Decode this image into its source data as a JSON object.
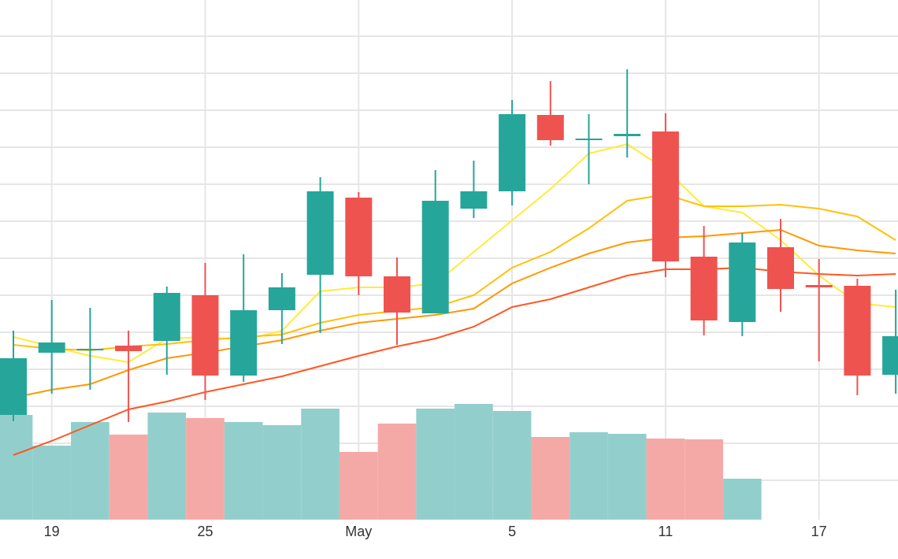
{
  "chart_data": {
    "type": "candlestick",
    "categories": [
      null,
      "19",
      null,
      null,
      null,
      "25",
      null,
      null,
      null,
      "May",
      null,
      null,
      null,
      "5",
      null,
      null,
      null,
      "11",
      null,
      null,
      null,
      "17",
      null,
      null
    ],
    "open": [
      133,
      212,
      216,
      221,
      227,
      285,
      183,
      266,
      311,
      409,
      309,
      262,
      395,
      417,
      514,
      483,
      487,
      493,
      334,
      251,
      346,
      298,
      297,
      184
    ],
    "high": [
      240,
      279,
      269,
      240,
      296,
      326,
      337,
      313,
      435,
      416,
      333,
      444,
      456,
      533,
      557,
      515,
      572,
      516,
      373,
      364,
      382,
      331,
      306,
      292
    ],
    "low": [
      125,
      160,
      165,
      124,
      184,
      152,
      175,
      223,
      237,
      285,
      222,
      262,
      383,
      399,
      475,
      426,
      460,
      308,
      234,
      233,
      264,
      201,
      158,
      160
    ],
    "close": [
      205,
      225,
      217,
      214,
      288,
      183,
      266,
      295,
      417,
      309,
      263,
      405,
      417,
      515,
      482,
      484,
      490,
      328,
      253,
      352,
      293,
      295,
      183,
      233
    ],
    "volume": [
      133,
      94,
      124,
      108,
      136,
      129,
      124,
      120,
      141,
      86,
      122,
      141,
      147,
      138,
      105,
      111,
      109,
      103,
      102,
      52,
      null,
      null,
      null,
      null
    ],
    "up_color": "#26a69a",
    "down_color": "#ef5350",
    "up_volume_color": "#92cfcc",
    "down_volume_color": "#f5a9a6",
    "series": [
      {
        "color": "#ffeb3b",
        "values": [
          232,
          220,
          208,
          200,
          230,
          232,
          228,
          240,
          290,
          295,
          295,
          300,
          340,
          380,
          420,
          465,
          477,
          445,
          398,
          390,
          355,
          310,
          275,
          270
        ]
      },
      {
        "color": "#ffc107",
        "values": [
          222,
          217,
          215,
          220,
          223,
          228,
          232,
          235,
          250,
          260,
          265,
          270,
          285,
          320,
          340,
          370,
          405,
          413,
          398,
          398,
          400,
          395,
          385,
          355
        ]
      },
      {
        "color": "#ff9800",
        "values": [
          155,
          165,
          172,
          190,
          205,
          212,
          220,
          228,
          240,
          250,
          255,
          260,
          268,
          300,
          320,
          338,
          352,
          358,
          360,
          364,
          368,
          348,
          342,
          338
        ]
      },
      {
        "color": "#ff5722",
        "values": [
          82,
          100,
          120,
          140,
          150,
          162,
          172,
          182,
          195,
          208,
          220,
          230,
          245,
          270,
          280,
          295,
          310,
          318,
          318,
          320,
          315,
          312,
          310,
          312
        ]
      }
    ],
    "ylim": [
      0,
      660
    ],
    "yticks": [
      50,
      97,
      144,
      191,
      238,
      285,
      332,
      379,
      426,
      473,
      520,
      567,
      614
    ],
    "grid": true
  }
}
